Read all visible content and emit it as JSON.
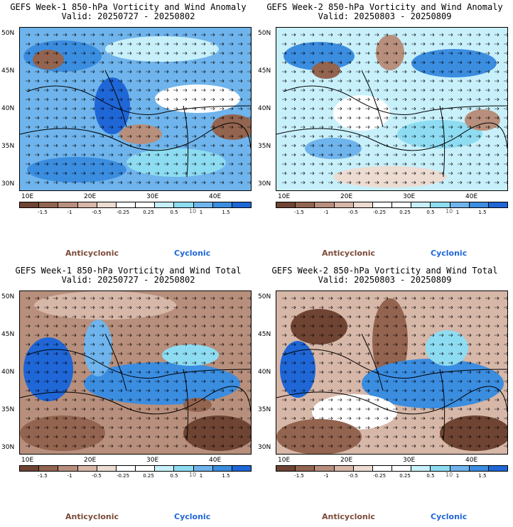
{
  "colors": {
    "anticyclonic_label": "#7b4a38",
    "cyclonic_label": "#1f66d6",
    "bins": [
      "#6f4433",
      "#93644f",
      "#b78f7c",
      "#d6b7a8",
      "#ecdcd2",
      "#ffffff",
      "#ffffff",
      "#c8f0fb",
      "#8edcf2",
      "#6fb4ec",
      "#3b8de0",
      "#1f66d6"
    ]
  },
  "colorbar": {
    "ticks": [
      "-1.5",
      "-1",
      "-0.5",
      "-0.25",
      "0.25",
      "0.5",
      "1",
      "1.5"
    ],
    "scale_label": "10"
  },
  "lat_labels": [
    "50N",
    "45N",
    "40N",
    "35N",
    "30N"
  ],
  "lon_labels": [
    "10E",
    "20E",
    "30E",
    "40E"
  ],
  "legend": {
    "anticyclonic": "Anticyclonic",
    "cyclonic": "Cyclonic"
  },
  "panels": [
    {
      "title": "GEFS Week-1 850-hPa Vorticity and Wind Anomaly",
      "valid": "Valid: 20250727 - 20250802"
    },
    {
      "title": "GEFS Week-2 850-hPa Vorticity and Wind Anomaly",
      "valid": "Valid: 20250803 - 20250809"
    },
    {
      "title": "GEFS Week-1 850-hPa Vorticity and Wind Total",
      "valid": "Valid: 20250727 - 20250802"
    },
    {
      "title": "GEFS Week-2 850-hPa Vorticity and Wind Total",
      "valid": "Valid: 20250803 - 20250809"
    }
  ]
}
